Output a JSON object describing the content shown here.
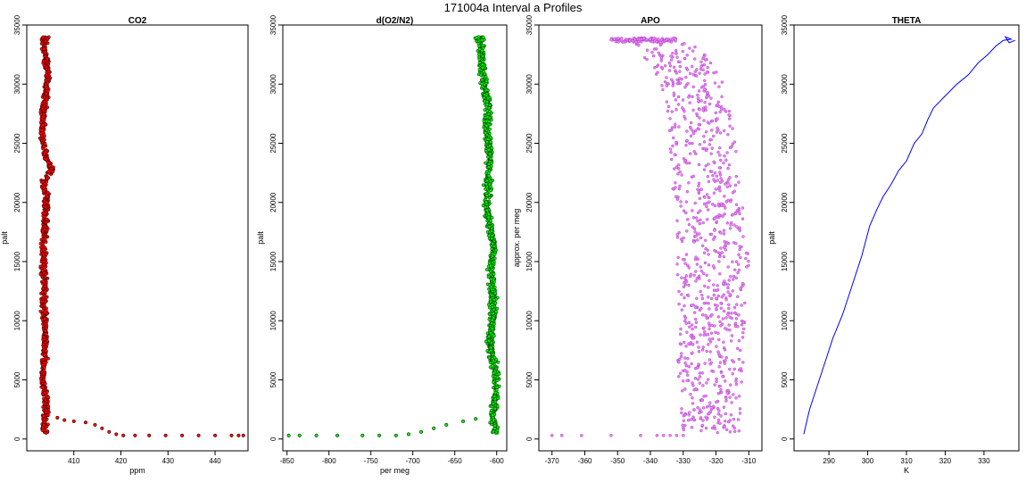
{
  "figure_title": "171004a   Interval a Profiles",
  "chart_data": [
    {
      "type": "scatter",
      "title": "CO2",
      "xlabel": "ppm",
      "ylabel": "palt",
      "xlim": [
        400,
        447
      ],
      "ylim": [
        -1000,
        35000
      ],
      "xticks": [
        410,
        420,
        430,
        440
      ],
      "yticks": [
        0,
        5000,
        10000,
        15000,
        20000,
        25000,
        30000,
        35000
      ],
      "color": "#ff0000",
      "edge_color": "#000000",
      "profile": [
        [
          404,
          500
        ],
        [
          403.6,
          1500
        ],
        [
          404.2,
          2500
        ],
        [
          404.0,
          3500
        ],
        [
          403.4,
          5000
        ],
        [
          403.8,
          7000
        ],
        [
          404.0,
          9000
        ],
        [
          403.6,
          11000
        ],
        [
          403.8,
          13000
        ],
        [
          403.5,
          15000
        ],
        [
          403.7,
          17000
        ],
        [
          404.0,
          19000
        ],
        [
          404.2,
          20500
        ],
        [
          403.5,
          21700
        ],
        [
          405.3,
          22800
        ],
        [
          403.8,
          24000
        ],
        [
          403.2,
          26000
        ],
        [
          403.5,
          27500
        ],
        [
          404.0,
          29000
        ],
        [
          404.5,
          30500
        ],
        [
          404.2,
          32000
        ],
        [
          403.5,
          33000
        ],
        [
          404.0,
          33900
        ]
      ],
      "tail": [
        [
          404.5,
          2000
        ],
        [
          406.5,
          1800
        ],
        [
          408.0,
          1600
        ],
        [
          410.0,
          1500
        ],
        [
          412.5,
          1400
        ],
        [
          414.5,
          1200
        ],
        [
          416.0,
          900
        ],
        [
          417.5,
          600
        ],
        [
          419.0,
          400
        ],
        [
          420.5,
          300
        ],
        [
          423.0,
          300
        ],
        [
          426.0,
          300
        ],
        [
          429.5,
          300
        ],
        [
          433.0,
          300
        ],
        [
          436.5,
          300
        ],
        [
          440.0,
          300
        ],
        [
          443.5,
          300
        ],
        [
          445.0,
          300
        ],
        [
          446.0,
          300
        ]
      ]
    },
    {
      "type": "scatter",
      "title": "d(O2/N2)",
      "xlabel": "per meg",
      "ylabel": "palt",
      "xlim": [
        -855,
        -588
      ],
      "ylim": [
        -1000,
        35000
      ],
      "xticks": [
        -850,
        -800,
        -750,
        -700,
        -650,
        -600
      ],
      "yticks": [
        0,
        5000,
        10000,
        15000,
        20000,
        25000,
        30000,
        35000
      ],
      "color": "#00ee00",
      "edge_color": "#000000",
      "profile": [
        [
          -600,
          500
        ],
        [
          -605,
          2000
        ],
        [
          -600,
          4000
        ],
        [
          -602,
          6000
        ],
        [
          -608,
          8000
        ],
        [
          -605,
          10000
        ],
        [
          -604,
          12000
        ],
        [
          -607,
          14000
        ],
        [
          -604,
          16000
        ],
        [
          -608,
          18000
        ],
        [
          -612,
          20000
        ],
        [
          -610,
          22000
        ],
        [
          -608,
          24000
        ],
        [
          -612,
          26000
        ],
        [
          -610,
          28000
        ],
        [
          -615,
          30000
        ],
        [
          -618,
          32000
        ],
        [
          -620,
          33900
        ]
      ],
      "tail": [
        [
          -625,
          1700
        ],
        [
          -640,
          1500
        ],
        [
          -660,
          1200
        ],
        [
          -675,
          900
        ],
        [
          -690,
          600
        ],
        [
          -705,
          400
        ],
        [
          -720,
          300
        ],
        [
          -740,
          300
        ],
        [
          -760,
          300
        ],
        [
          -790,
          300
        ],
        [
          -815,
          300
        ],
        [
          -835,
          300
        ],
        [
          -848,
          300
        ]
      ]
    },
    {
      "type": "scatter",
      "title": "APO",
      "xlabel": "",
      "ylabel": "approx. per meg",
      "xlim": [
        -374,
        -306
      ],
      "ylim": [
        -1000,
        35000
      ],
      "xticks": [
        -370,
        -360,
        -350,
        -340,
        -330,
        -320,
        -310
      ],
      "yticks": [
        0,
        5000,
        10000,
        15000,
        20000,
        25000,
        30000,
        35000
      ],
      "color": "#ee82ee",
      "edge_color": "#9932cc",
      "band": [
        [
          -331,
          -313,
          500
        ],
        [
          -332,
          -312,
          5000
        ],
        [
          -331,
          -311,
          10000
        ],
        [
          -332,
          -310,
          15000
        ],
        [
          -333,
          -312,
          20000
        ],
        [
          -334,
          -314,
          25000
        ],
        [
          -337,
          -317,
          30000
        ],
        [
          -345,
          -326,
          33500
        ]
      ],
      "top_cluster": [
        -352,
        -332,
        33900
      ],
      "tail": [
        -370,
        -367,
        -361,
        -352,
        -343,
        -338,
        -336,
        -334,
        -332,
        -330
      ]
    },
    {
      "type": "line",
      "title": "THETA",
      "xlabel": "K",
      "ylabel": "palt",
      "xlim": [
        281,
        339
      ],
      "ylim": [
        -1000,
        35000
      ],
      "xticks": [
        290,
        300,
        310,
        320,
        330
      ],
      "yticks": [
        0,
        5000,
        10000,
        15000,
        20000,
        25000,
        30000,
        35000
      ],
      "color": "#0000ff",
      "line": [
        [
          283.5,
          400
        ],
        [
          285,
          2500
        ],
        [
          287,
          4500
        ],
        [
          289,
          6500
        ],
        [
          291,
          8500
        ],
        [
          293.5,
          10500
        ],
        [
          296,
          13000
        ],
        [
          298.5,
          15500
        ],
        [
          300.5,
          18000
        ],
        [
          302.5,
          19500
        ],
        [
          304,
          20500
        ],
        [
          306,
          21500
        ],
        [
          308,
          22700
        ],
        [
          310,
          23500
        ],
        [
          312,
          25000
        ],
        [
          314,
          25800
        ],
        [
          315.5,
          27000
        ],
        [
          317,
          28000
        ],
        [
          320,
          29000
        ],
        [
          323,
          30000
        ],
        [
          326,
          30800
        ],
        [
          328.5,
          31800
        ],
        [
          331,
          32500
        ],
        [
          333,
          33200
        ],
        [
          335,
          33700
        ],
        [
          337,
          33800
        ],
        [
          335.5,
          34000
        ],
        [
          336.5,
          33500
        ],
        [
          338,
          33700
        ]
      ]
    }
  ]
}
